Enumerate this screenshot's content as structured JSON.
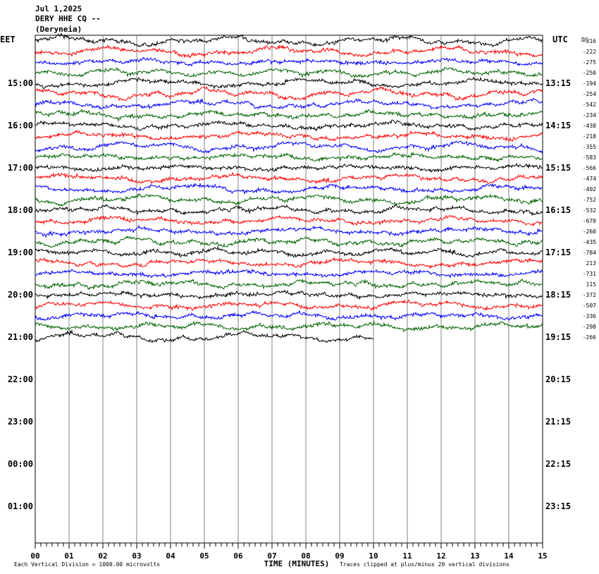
{
  "header": {
    "date": "Jul 1,2025",
    "station": "DERY HHE CQ --",
    "location": "(Deryneia)"
  },
  "chart_data": {
    "type": "line",
    "left_timezone": "EET",
    "right_timezone": "UTC",
    "dc_label": "DC",
    "left_hour_labels": [
      "15:00",
      "16:00",
      "17:00",
      "18:00",
      "19:00",
      "20:00",
      "21:00",
      "22:00",
      "23:00",
      "00:00",
      "01:00"
    ],
    "right_hour_labels": [
      "13:15",
      "14:15",
      "15:15",
      "16:15",
      "17:15",
      "18:15",
      "19:15",
      "20:15",
      "21:15",
      "22:15",
      "23:15"
    ],
    "x_ticks": [
      "00",
      "01",
      "02",
      "03",
      "04",
      "05",
      "06",
      "07",
      "08",
      "09",
      "10",
      "11",
      "12",
      "13",
      "14",
      "15"
    ],
    "xlabel": "TIME (MINUTES)",
    "xlim": [
      0,
      15
    ],
    "trace_colors": [
      "#000000",
      "#ff0000",
      "#0000ff",
      "#006400"
    ],
    "dc_offsets": [
      "-316",
      "-222",
      "-275",
      "-250",
      "-194",
      "-254",
      "-542",
      "-234",
      "-438",
      "-218",
      "-355",
      "-583",
      "-566",
      "-474",
      "-402",
      "-752",
      "-532",
      "-670",
      "-260",
      "-435",
      "-784",
      "213",
      "-731",
      "115",
      "-372",
      "-507",
      "-336",
      "-298",
      "-266"
    ],
    "footer_left": "Each Vertical Division = 1000.00 microvolts",
    "footer_right": "Traces clipped at plus/minus 20 vertical divisions",
    "last_trace_end_minute": 10.0
  }
}
